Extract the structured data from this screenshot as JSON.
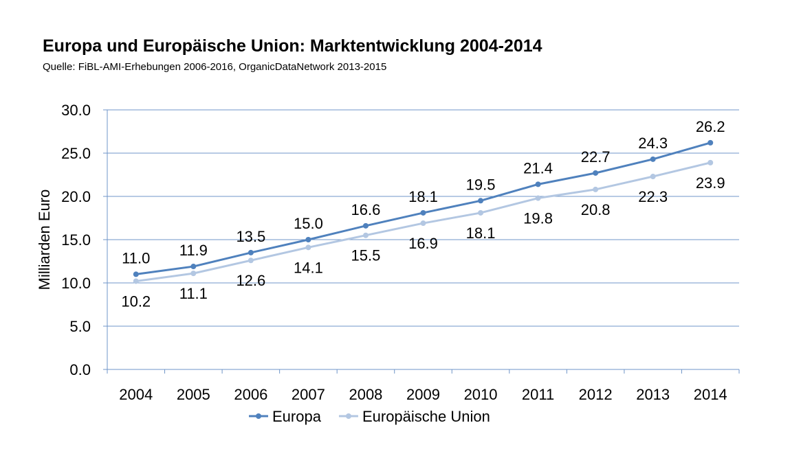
{
  "title": "Europa und Europäische Union: Marktentwicklung 2004-2014",
  "subtitle": "Quelle: FiBL-AMI-Erhebungen 2006-2016, OrganicDataNetwork 2013-2015",
  "chart_data": {
    "type": "line",
    "title": "Europa und Europäische Union: Marktentwicklung 2004-2014",
    "subtitle": "Quelle: FiBL-AMI-Erhebungen 2006-2016, OrganicDataNetwork 2013-2015",
    "xlabel": "",
    "ylabel": "Milliarden Euro",
    "categories": [
      "2004",
      "2005",
      "2006",
      "2007",
      "2008",
      "2009",
      "2010",
      "2011",
      "2012",
      "2013",
      "2014"
    ],
    "ylim": [
      0,
      30
    ],
    "yticks": [
      "0.0",
      "5.0",
      "10.0",
      "15.0",
      "20.0",
      "25.0",
      "30.0"
    ],
    "grid": true,
    "legend_position": "bottom",
    "series": [
      {
        "name": "Europa",
        "color": "#4f81bd",
        "values": [
          11.0,
          11.9,
          13.5,
          15.0,
          16.6,
          18.1,
          19.5,
          21.4,
          22.7,
          24.3,
          26.2
        ],
        "labels": [
          "11.0",
          "11.9",
          "13.5",
          "15.0",
          "16.6",
          "18.1",
          "19.5",
          "21.4",
          "22.7",
          "24.3",
          "26.2"
        ],
        "label_position": "above"
      },
      {
        "name": "Europäische Union",
        "color": "#b3c7e2",
        "values": [
          10.2,
          11.1,
          12.6,
          14.1,
          15.5,
          16.9,
          18.1,
          19.8,
          20.8,
          22.3,
          23.9
        ],
        "labels": [
          "10.2",
          "11.1",
          "12.6",
          "14.1",
          "15.5",
          "16.9",
          "18.1",
          "19.8",
          "20.8",
          "22.3",
          "23.9"
        ],
        "label_position": "below"
      }
    ]
  }
}
